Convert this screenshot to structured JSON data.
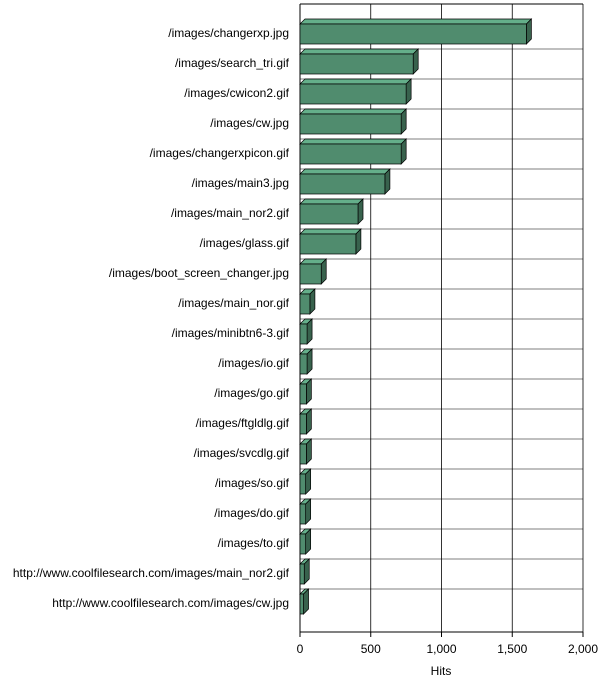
{
  "chart_data": {
    "type": "bar",
    "orientation": "horizontal",
    "x_label": "Hits",
    "categories": [
      "/images/changerxp.jpg",
      "/images/search_tri.gif",
      "/images/cwicon2.gif",
      "/images/cw.jpg",
      "/images/changerxpicon.gif",
      "/images/main3.jpg",
      "/images/main_nor2.gif",
      "/images/glass.gif",
      "/images/boot_screen_changer.jpg",
      "/images/main_nor.gif",
      "/images/minibtn6-3.gif",
      "/images/io.gif",
      "/images/go.gif",
      "/images/ftgldlg.gif",
      "/images/svcdlg.gif",
      "/images/so.gif",
      "/images/do.gif",
      "/images/to.gif",
      "http://www.coolfilesearch.com/images/main_nor2.gif",
      "http://www.coolfilesearch.com/images/cw.jpg"
    ],
    "values": [
      1600,
      800,
      750,
      715,
      715,
      600,
      410,
      395,
      150,
      70,
      50,
      50,
      45,
      45,
      45,
      40,
      40,
      40,
      30,
      25
    ],
    "color": "#508c6e",
    "xlim": [
      0,
      2000
    ],
    "xticks": [
      0,
      500,
      {
        "value": 1000,
        "label": "1,000"
      },
      {
        "value": 1500,
        "label": "1,500"
      },
      {
        "value": 2000,
        "label": "2,000"
      }
    ],
    "grid": true
  }
}
